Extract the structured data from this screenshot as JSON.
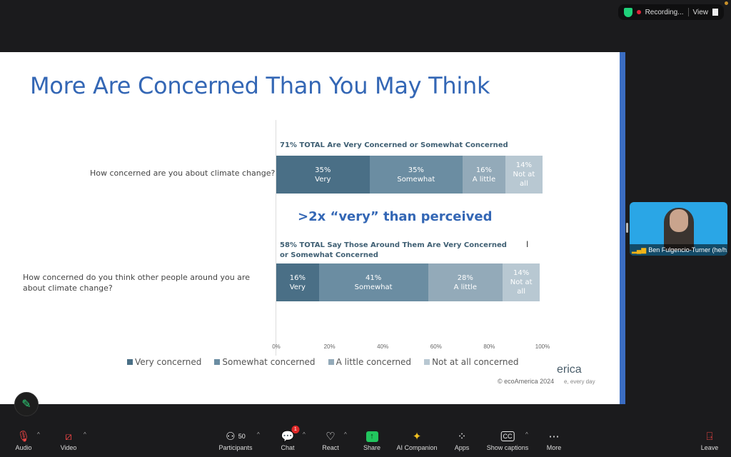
{
  "top": {
    "recording": "Recording...",
    "view": "View"
  },
  "slide": {
    "title": "More Are Concerned Than You May Think",
    "callout": ">2x “very” than perceived",
    "copyright": "© ecoAmerica 2024",
    "logo_fragment": "erica",
    "tagline_fragment": "e, every day"
  },
  "chart_data": {
    "type": "bar",
    "orientation": "horizontal-stacked-100",
    "title": "More Are Concerned Than You May Think",
    "categories": [
      "How concerned are you about climate change?",
      "How concerned do you think other people around you are about climate change?"
    ],
    "headlines": [
      "71% TOTAL Are Very Concerned or Somewhat Concerned",
      "58% TOTAL Say Those Around Them Are Very Concerned or Somewhat Concerned"
    ],
    "series": [
      {
        "name": "Very concerned",
        "short": "Very",
        "color": "#4a6f86",
        "values": [
          35,
          16
        ]
      },
      {
        "name": "Somewhat concerned",
        "short": "Somewhat",
        "color": "#6b8da2",
        "values": [
          35,
          41
        ]
      },
      {
        "name": "A little concerned",
        "short": "A little",
        "color": "#93aab9",
        "values": [
          16,
          28
        ]
      },
      {
        "name": "Not at all concerned",
        "short": "Not at all",
        "color": "#b8c8d2",
        "values": [
          14,
          14
        ]
      }
    ],
    "xticks": [
      "0%",
      "20%",
      "40%",
      "60%",
      "80%",
      "100%"
    ],
    "xlim": [
      0,
      100
    ],
    "legend": "bottom"
  },
  "participant": {
    "name": "Ben Fulgencio-Turner (he/h..."
  },
  "toolbar": {
    "audio": "Audio",
    "video": "Video",
    "participants": "Participants",
    "participants_count": "50",
    "chat": "Chat",
    "chat_badge": "1",
    "react": "React",
    "share": "Share",
    "ai": "AI Companion",
    "apps": "Apps",
    "captions": "Show captions",
    "more": "More",
    "leave": "Leave"
  }
}
